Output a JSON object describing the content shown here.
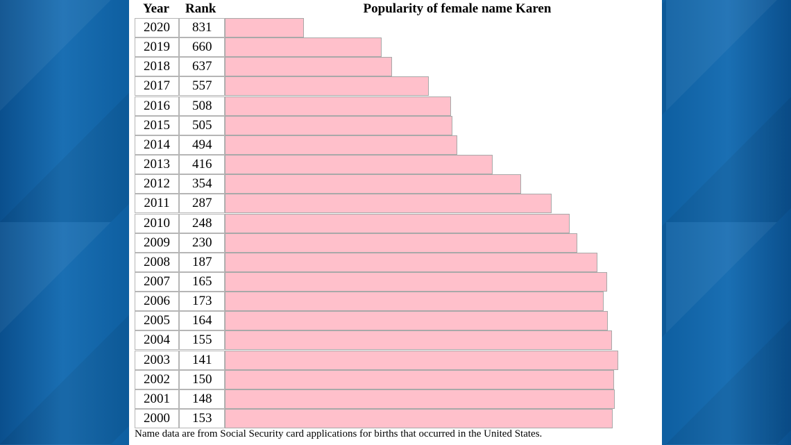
{
  "chart_data": {
    "type": "table",
    "title": "Popularity of female name Karen",
    "columns": [
      "Year",
      "Rank"
    ],
    "bar_color": "#ffc0cb",
    "rows": [
      {
        "year": "2020",
        "rank": 831
      },
      {
        "year": "2019",
        "rank": 660
      },
      {
        "year": "2018",
        "rank": 637
      },
      {
        "year": "2017",
        "rank": 557
      },
      {
        "year": "2016",
        "rank": 508
      },
      {
        "year": "2015",
        "rank": 505
      },
      {
        "year": "2014",
        "rank": 494
      },
      {
        "year": "2013",
        "rank": 416
      },
      {
        "year": "2012",
        "rank": 354
      },
      {
        "year": "2011",
        "rank": 287
      },
      {
        "year": "2010",
        "rank": 248
      },
      {
        "year": "2009",
        "rank": 230
      },
      {
        "year": "2008",
        "rank": 187
      },
      {
        "year": "2007",
        "rank": 165
      },
      {
        "year": "2006",
        "rank": 173
      },
      {
        "year": "2005",
        "rank": 164
      },
      {
        "year": "2004",
        "rank": 155
      },
      {
        "year": "2003",
        "rank": 141
      },
      {
        "year": "2002",
        "rank": 150
      },
      {
        "year": "2001",
        "rank": 148
      },
      {
        "year": "2000",
        "rank": 153
      }
    ],
    "footnote": "Name data are from Social Security card applications for births that occurred in the United States."
  }
}
